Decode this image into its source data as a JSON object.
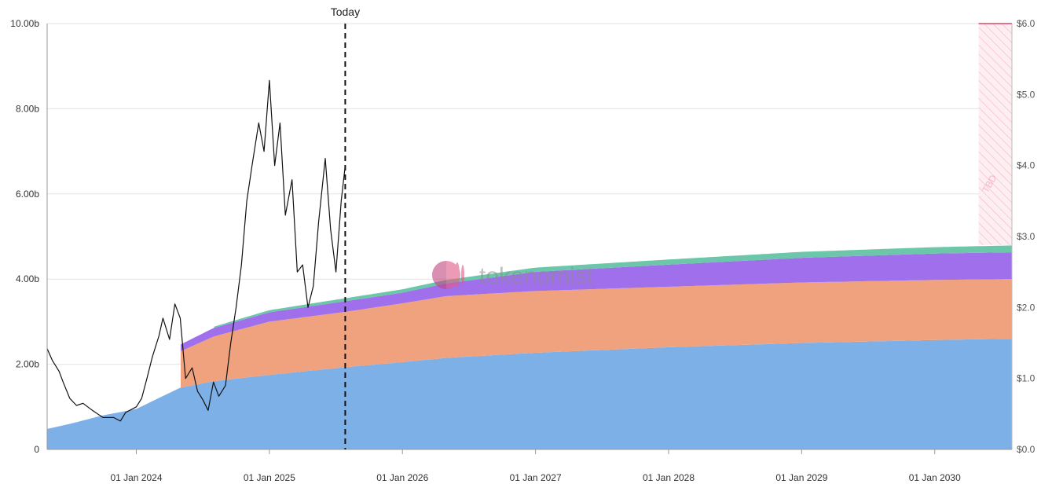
{
  "chart_data": {
    "type": "area",
    "title": "",
    "xlabel": "",
    "ylabel": "",
    "x_ticks": [
      "01 Jan 2024",
      "01 Jan 2025",
      "01 Jan 2026",
      "01 Jan 2027",
      "01 Jan 2028",
      "01 Jan 2029",
      "01 Jan 2030"
    ],
    "x_tick_values": [
      2024.0,
      2025.0,
      2026.0,
      2027.0,
      2028.0,
      2029.0,
      2030.0
    ],
    "xlim": [
      2023.33,
      2030.58
    ],
    "y_left_ticks": [
      "0",
      "2.00b",
      "4.00b",
      "6.00b",
      "8.00b",
      "10.00b"
    ],
    "y_left_tick_values": [
      0,
      2,
      4,
      6,
      8,
      10
    ],
    "ylim_left": [
      0,
      10
    ],
    "y_right_ticks": [
      "$0.0",
      "$1.0",
      "$2.0",
      "$3.0",
      "$4.0",
      "$5.0",
      "$6.0"
    ],
    "y_right_tick_values": [
      0,
      1,
      2,
      3,
      4,
      5,
      6
    ],
    "ylim_right": [
      0,
      6
    ],
    "grid": true,
    "today": {
      "label": "Today",
      "x": 2025.57
    },
    "tbd": {
      "label": "TBD",
      "x_start": 2030.33,
      "x_end": 2030.58,
      "y_start": 4.8,
      "y_end": 10.0,
      "color": "#f5b3c5"
    },
    "watermark": "tokenomist",
    "series": [
      {
        "color": "#7eb0e8",
        "points": [
          [
            2023.33,
            0.48
          ],
          [
            2023.5,
            0.6
          ],
          [
            2023.75,
            0.8
          ],
          [
            2024.0,
            0.95
          ],
          [
            2024.33,
            1.45
          ],
          [
            2024.58,
            1.6
          ],
          [
            2025.0,
            1.75
          ],
          [
            2025.57,
            1.93
          ],
          [
            2026.0,
            2.05
          ],
          [
            2026.33,
            2.15
          ],
          [
            2027.0,
            2.27
          ],
          [
            2028.0,
            2.4
          ],
          [
            2029.0,
            2.5
          ],
          [
            2030.0,
            2.57
          ],
          [
            2030.58,
            2.6
          ]
        ]
      },
      {
        "color": "#f0a27e",
        "points": [
          [
            2024.33,
            0.85
          ],
          [
            2024.58,
            1.05
          ],
          [
            2025.0,
            1.25
          ],
          [
            2025.57,
            1.3
          ],
          [
            2026.0,
            1.38
          ],
          [
            2026.33,
            1.45
          ],
          [
            2027.0,
            1.45
          ],
          [
            2028.0,
            1.42
          ],
          [
            2029.0,
            1.42
          ],
          [
            2030.0,
            1.41
          ],
          [
            2030.58,
            1.4
          ]
        ]
      },
      {
        "color": "#a070ec",
        "points": [
          [
            2024.33,
            0.16
          ],
          [
            2024.58,
            0.2
          ],
          [
            2025.0,
            0.22
          ],
          [
            2025.57,
            0.25
          ],
          [
            2026.0,
            0.25
          ],
          [
            2026.33,
            0.3
          ],
          [
            2027.0,
            0.45
          ],
          [
            2028.0,
            0.52
          ],
          [
            2029.0,
            0.58
          ],
          [
            2030.0,
            0.62
          ],
          [
            2030.58,
            0.63
          ]
        ]
      },
      {
        "color": "#6cc7aa",
        "points": [
          [
            2024.58,
            0.03
          ],
          [
            2025.0,
            0.05
          ],
          [
            2025.57,
            0.07
          ],
          [
            2026.0,
            0.08
          ],
          [
            2026.33,
            0.08
          ],
          [
            2027.0,
            0.1
          ],
          [
            2028.0,
            0.12
          ],
          [
            2029.0,
            0.14
          ],
          [
            2030.0,
            0.15
          ],
          [
            2030.58,
            0.16
          ]
        ]
      }
    ],
    "price_series": {
      "axis": "right",
      "color": "#111111",
      "points": [
        [
          2023.33,
          1.42
        ],
        [
          2023.37,
          1.25
        ],
        [
          2023.42,
          1.1
        ],
        [
          2023.45,
          0.95
        ],
        [
          2023.5,
          0.72
        ],
        [
          2023.55,
          0.62
        ],
        [
          2023.6,
          0.65
        ],
        [
          2023.67,
          0.55
        ],
        [
          2023.75,
          0.45
        ],
        [
          2023.83,
          0.45
        ],
        [
          2023.88,
          0.4
        ],
        [
          2023.92,
          0.52
        ],
        [
          2024.0,
          0.6
        ],
        [
          2024.04,
          0.72
        ],
        [
          2024.08,
          1.0
        ],
        [
          2024.12,
          1.3
        ],
        [
          2024.17,
          1.6
        ],
        [
          2024.2,
          1.85
        ],
        [
          2024.25,
          1.55
        ],
        [
          2024.29,
          2.05
        ],
        [
          2024.33,
          1.85
        ],
        [
          2024.37,
          1.0
        ],
        [
          2024.42,
          1.15
        ],
        [
          2024.46,
          0.82
        ],
        [
          2024.5,
          0.7
        ],
        [
          2024.54,
          0.55
        ],
        [
          2024.58,
          0.95
        ],
        [
          2024.62,
          0.75
        ],
        [
          2024.67,
          0.9
        ],
        [
          2024.71,
          1.5
        ],
        [
          2024.75,
          2.0
        ],
        [
          2024.79,
          2.6
        ],
        [
          2024.83,
          3.5
        ],
        [
          2024.87,
          4.0
        ],
        [
          2024.92,
          4.6
        ],
        [
          2024.96,
          4.2
        ],
        [
          2025.0,
          5.2
        ],
        [
          2025.04,
          4.0
        ],
        [
          2025.08,
          4.6
        ],
        [
          2025.12,
          3.3
        ],
        [
          2025.17,
          3.8
        ],
        [
          2025.21,
          2.5
        ],
        [
          2025.25,
          2.6
        ],
        [
          2025.29,
          2.0
        ],
        [
          2025.33,
          2.3
        ],
        [
          2025.37,
          3.2
        ],
        [
          2025.42,
          4.1
        ],
        [
          2025.46,
          3.1
        ],
        [
          2025.5,
          2.5
        ],
        [
          2025.54,
          3.5
        ],
        [
          2025.57,
          4.0
        ]
      ]
    }
  }
}
